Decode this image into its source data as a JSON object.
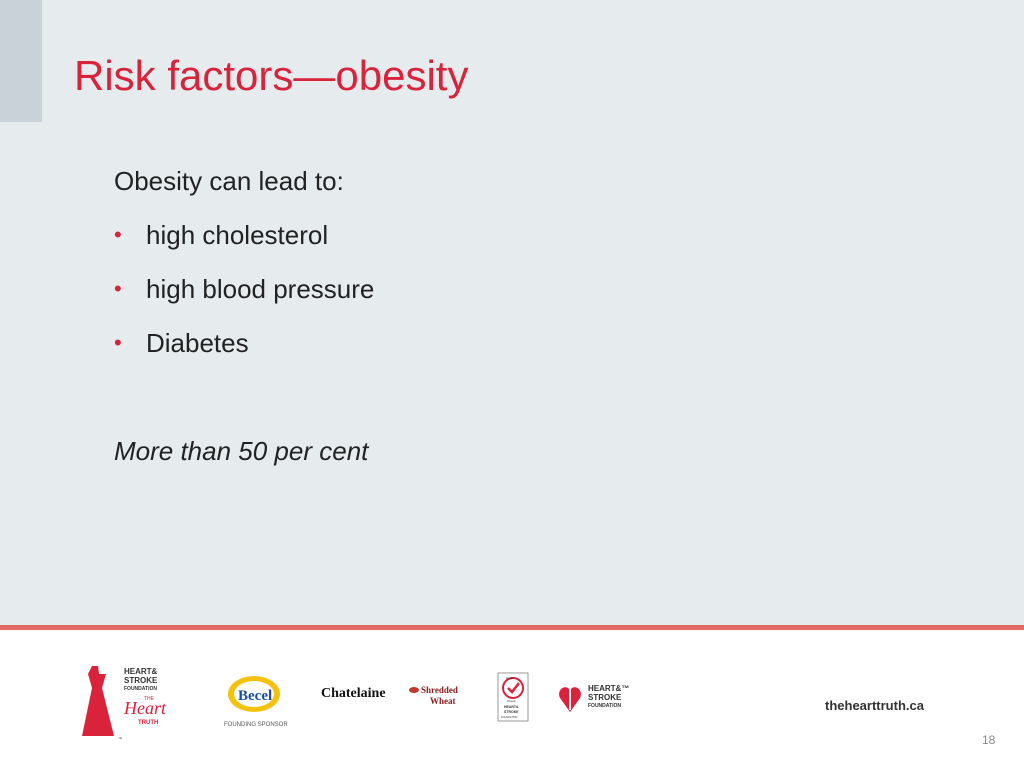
{
  "slide": {
    "title": "Risk factors—obesity",
    "intro": "Obesity can lead to:",
    "bullets": [
      "high cholesterol",
      "high blood pressure",
      "Diabetes"
    ],
    "note": "More than 50 per cent"
  },
  "footer": {
    "logos": {
      "heart_truth": {
        "line1": "HEART&",
        "line2": "STROKE",
        "line3": "FOUNDATION",
        "the": "THE",
        "heart": "Heart",
        "truth": "TRUTH",
        "tm": "™"
      },
      "becel": {
        "name": "Becel",
        "caption": "FOUNDING SPONSOR"
      },
      "chatelaine": "Chatelaine",
      "shredded_wheat": {
        "line1": "Shredded",
        "line2": "Wheat"
      },
      "health_check": {
        "line1": "Health",
        "line2": "Check",
        "line3": "HEART&",
        "line4": "STROKE",
        "line5": "FOUNDATION"
      },
      "hsf": {
        "line1": "HEART&™",
        "line2": "STROKE",
        "line3": "FOUNDATION"
      }
    },
    "website": "thehearttruth.ca",
    "page_number": "18"
  },
  "colors": {
    "accent": "#d9233b",
    "divider": "#e36a62",
    "background": "#e6ebee",
    "corner": "#c9d2d8"
  }
}
